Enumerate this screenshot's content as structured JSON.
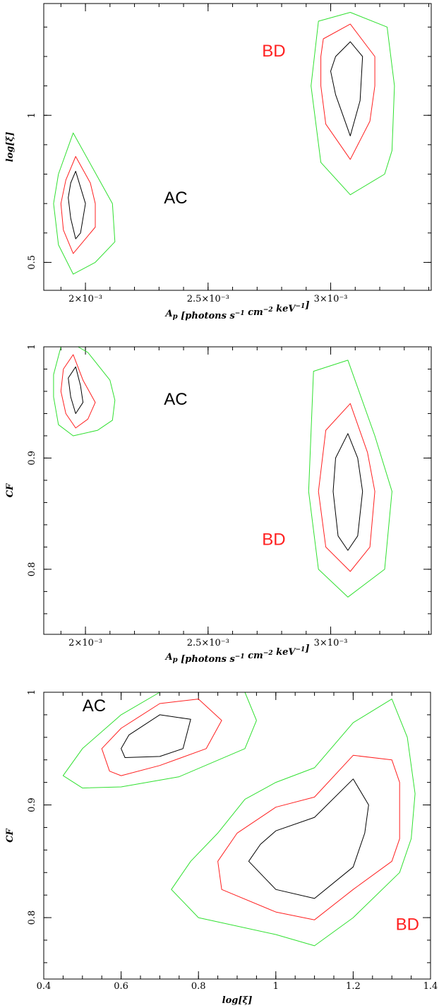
{
  "colors": {
    "inner": "#000000",
    "middle": "#ff2020",
    "outer": "#30e030",
    "label_AC": "#000000",
    "label_BD": "#ff2020"
  },
  "chart_data": [
    {
      "type": "contour",
      "title": "",
      "xlabel": "A_p [photons s^-1 cm^-2 keV^-1]",
      "ylabel": "log[ξ]",
      "xlim": [
        0.00183,
        0.00341
      ],
      "ylim": [
        0.405,
        1.38
      ],
      "x_ticks": [
        {
          "value": 0.002,
          "label": "2×10⁻³"
        },
        {
          "value": 0.0025,
          "label": "2.5×10⁻³"
        },
        {
          "value": 0.003,
          "label": "3×10⁻³"
        }
      ],
      "y_ticks": [
        {
          "value": 0.5,
          "label": "0.5"
        },
        {
          "value": 1,
          "label": "1"
        }
      ],
      "x_minor": 0.0001,
      "y_minor": 0.1,
      "annotations": [
        {
          "text": "AC",
          "x": 0.00232,
          "y": 0.7,
          "color_key": "label_AC"
        },
        {
          "text": "BD",
          "x": 0.00272,
          "y": 1.2,
          "color_key": "label_BD"
        }
      ],
      "contours": [
        {
          "region": "AC",
          "level": "outer",
          "points": [
            [
              0.00195,
              0.94
            ],
            [
              0.00211,
              0.7
            ],
            [
              0.00212,
              0.57
            ],
            [
              0.00204,
              0.5
            ],
            [
              0.00195,
              0.46
            ],
            [
              0.00189,
              0.56
            ],
            [
              0.00187,
              0.7
            ],
            [
              0.00189,
              0.8
            ]
          ]
        },
        {
          "region": "AC",
          "level": "middle",
          "points": [
            [
              0.00196,
              0.86
            ],
            [
              0.00202,
              0.77
            ],
            [
              0.00204,
              0.7
            ],
            [
              0.00204,
              0.62
            ],
            [
              0.00199,
              0.57
            ],
            [
              0.00195,
              0.53
            ],
            [
              0.00191,
              0.61
            ],
            [
              0.0019,
              0.7
            ],
            [
              0.00192,
              0.78
            ]
          ]
        },
        {
          "region": "AC",
          "level": "inner",
          "points": [
            [
              0.00196,
              0.81
            ],
            [
              0.002,
              0.7
            ],
            [
              0.00198,
              0.6
            ],
            [
              0.00196,
              0.58
            ],
            [
              0.00194,
              0.65
            ],
            [
              0.00193,
              0.72
            ],
            [
              0.00194,
              0.77
            ]
          ]
        },
        {
          "region": "BD",
          "level": "outer",
          "points": [
            [
              0.00295,
              1.32
            ],
            [
              0.00308,
              1.35
            ],
            [
              0.00323,
              1.3
            ],
            [
              0.00326,
              1.1
            ],
            [
              0.00325,
              0.88
            ],
            [
              0.00322,
              0.8
            ],
            [
              0.00308,
              0.73
            ],
            [
              0.00296,
              0.84
            ],
            [
              0.00292,
              1.1
            ]
          ]
        },
        {
          "region": "BD",
          "level": "middle",
          "points": [
            [
              0.00297,
              1.26
            ],
            [
              0.00308,
              1.31
            ],
            [
              0.00318,
              1.2
            ],
            [
              0.00318,
              1.1
            ],
            [
              0.00316,
              0.98
            ],
            [
              0.00308,
              0.85
            ],
            [
              0.00298,
              0.97
            ],
            [
              0.00296,
              1.1
            ],
            [
              0.00296,
              1.2
            ]
          ]
        },
        {
          "region": "BD",
          "level": "inner",
          "points": [
            [
              0.00302,
              1.2
            ],
            [
              0.00308,
              1.25
            ],
            [
              0.00313,
              1.2
            ],
            [
              0.00312,
              1.05
            ],
            [
              0.00308,
              0.93
            ],
            [
              0.00302,
              1.07
            ],
            [
              0.003,
              1.15
            ]
          ]
        }
      ]
    },
    {
      "type": "contour",
      "title": "",
      "xlabel": "A_p [photons s^-1 cm^-2 keV^-1]",
      "ylabel": "CF",
      "xlim": [
        0.00183,
        0.00341
      ],
      "ylim": [
        0.7415,
        1.0
      ],
      "x_ticks": [
        {
          "value": 0.002,
          "label": "2×10⁻³"
        },
        {
          "value": 0.0025,
          "label": "2.5×10⁻³"
        },
        {
          "value": 0.003,
          "label": "3×10⁻³"
        }
      ],
      "y_ticks": [
        {
          "value": 0.8,
          "label": "0.8"
        },
        {
          "value": 0.9,
          "label": "0.9"
        },
        {
          "value": 1,
          "label": "1"
        }
      ],
      "x_minor": 0.0001,
      "y_minor": 0.02,
      "annotations": [
        {
          "text": "AC",
          "x": 0.00232,
          "y": 0.948,
          "color_key": "label_AC"
        },
        {
          "text": "BD",
          "x": 0.00272,
          "y": 0.822,
          "color_key": "label_BD"
        }
      ],
      "contours": [
        {
          "region": "AC",
          "level": "outer",
          "points": [
            [
              0.0019,
              1.0
            ],
            [
              0.00197,
              1.0
            ],
            [
              0.00201,
              0.995
            ],
            [
              0.0021,
              0.97
            ],
            [
              0.00212,
              0.952
            ],
            [
              0.00211,
              0.934
            ],
            [
              0.00205,
              0.925
            ],
            [
              0.00195,
              0.92
            ],
            [
              0.00189,
              0.93
            ],
            [
              0.00187,
              0.955
            ],
            [
              0.00187,
              0.975
            ]
          ]
        },
        {
          "region": "AC",
          "level": "middle",
          "points": [
            [
              0.00195,
              0.993
            ],
            [
              0.00199,
              0.97
            ],
            [
              0.00204,
              0.95
            ],
            [
              0.00201,
              0.935
            ],
            [
              0.00196,
              0.927
            ],
            [
              0.00192,
              0.94
            ],
            [
              0.0019,
              0.96
            ],
            [
              0.00191,
              0.98
            ]
          ]
        },
        {
          "region": "AC",
          "level": "inner",
          "points": [
            [
              0.00196,
              0.982
            ],
            [
              0.00198,
              0.965
            ],
            [
              0.00199,
              0.95
            ],
            [
              0.00196,
              0.94
            ],
            [
              0.00194,
              0.955
            ],
            [
              0.00193,
              0.972
            ]
          ]
        },
        {
          "region": "BD",
          "level": "outer",
          "points": [
            [
              0.00293,
              0.978
            ],
            [
              0.00307,
              0.988
            ],
            [
              0.00318,
              0.92
            ],
            [
              0.00325,
              0.87
            ],
            [
              0.00322,
              0.8
            ],
            [
              0.00307,
              0.775
            ],
            [
              0.00295,
              0.8
            ],
            [
              0.00291,
              0.87
            ]
          ]
        },
        {
          "region": "BD",
          "level": "middle",
          "points": [
            [
              0.00298,
              0.925
            ],
            [
              0.00308,
              0.949
            ],
            [
              0.00315,
              0.905
            ],
            [
              0.00318,
              0.87
            ],
            [
              0.00316,
              0.82
            ],
            [
              0.00308,
              0.798
            ],
            [
              0.00298,
              0.82
            ],
            [
              0.00295,
              0.87
            ]
          ]
        },
        {
          "region": "BD",
          "level": "inner",
          "points": [
            [
              0.00302,
              0.9
            ],
            [
              0.00307,
              0.922
            ],
            [
              0.00311,
              0.9
            ],
            [
              0.00313,
              0.87
            ],
            [
              0.00311,
              0.83
            ],
            [
              0.00307,
              0.817
            ],
            [
              0.00303,
              0.83
            ],
            [
              0.00301,
              0.87
            ]
          ]
        }
      ]
    },
    {
      "type": "contour",
      "title": "",
      "xlabel": "log[ξ]",
      "ylabel": "CF",
      "xlim": [
        0.4,
        1.4
      ],
      "ylim": [
        0.7455,
        1.0
      ],
      "x_ticks": [
        {
          "value": 0.4,
          "label": "0.4"
        },
        {
          "value": 0.6,
          "label": "0.6"
        },
        {
          "value": 0.8,
          "label": "0.8"
        },
        {
          "value": 1.0,
          "label": "1"
        },
        {
          "value": 1.2,
          "label": "1.2"
        },
        {
          "value": 1.4,
          "label": "1.4"
        }
      ],
      "y_ticks": [
        {
          "value": 0.8,
          "label": "0.8"
        },
        {
          "value": 0.9,
          "label": "0.9"
        },
        {
          "value": 1,
          "label": "1"
        }
      ],
      "x_minor": 0.05,
      "y_minor": 0.02,
      "annotations": [
        {
          "text": "AC",
          "x": 0.5,
          "y": 0.983,
          "color_key": "label_AC"
        },
        {
          "text": "BD",
          "x": 1.31,
          "y": 0.789,
          "color_key": "label_BD"
        }
      ],
      "contours": [
        {
          "region": "AC",
          "level": "outer",
          "points": [
            [
              0.6,
              0.98
            ],
            [
              0.7,
              1.0
            ],
            [
              0.92,
              1.0
            ],
            [
              0.95,
              0.975
            ],
            [
              0.92,
              0.95
            ],
            [
              0.75,
              0.925
            ],
            [
              0.6,
              0.916
            ],
            [
              0.5,
              0.915
            ],
            [
              0.45,
              0.926
            ],
            [
              0.5,
              0.95
            ]
          ]
        },
        {
          "region": "AC",
          "level": "middle",
          "points": [
            [
              0.6,
              0.968
            ],
            [
              0.7,
              0.99
            ],
            [
              0.8,
              0.994
            ],
            [
              0.86,
              0.975
            ],
            [
              0.82,
              0.95
            ],
            [
              0.7,
              0.935
            ],
            [
              0.6,
              0.926
            ],
            [
              0.57,
              0.93
            ],
            [
              0.55,
              0.95
            ]
          ]
        },
        {
          "region": "AC",
          "level": "inner",
          "points": [
            [
              0.62,
              0.962
            ],
            [
              0.7,
              0.98
            ],
            [
              0.78,
              0.976
            ],
            [
              0.76,
              0.95
            ],
            [
              0.7,
              0.943
            ],
            [
              0.61,
              0.942
            ],
            [
              0.6,
              0.95
            ]
          ]
        },
        {
          "region": "BD",
          "level": "outer",
          "points": [
            [
              0.92,
              0.905
            ],
            [
              1.0,
              0.92
            ],
            [
              1.1,
              0.933
            ],
            [
              1.2,
              0.973
            ],
            [
              1.3,
              0.994
            ],
            [
              1.34,
              0.96
            ],
            [
              1.36,
              0.91
            ],
            [
              1.35,
              0.87
            ],
            [
              1.32,
              0.84
            ],
            [
              1.2,
              0.8
            ],
            [
              1.1,
              0.775
            ],
            [
              1.0,
              0.785
            ],
            [
              0.8,
              0.8
            ],
            [
              0.73,
              0.825
            ],
            [
              0.78,
              0.85
            ],
            [
              0.85,
              0.875
            ]
          ]
        },
        {
          "region": "BD",
          "level": "middle",
          "points": [
            [
              0.9,
              0.875
            ],
            [
              1.0,
              0.898
            ],
            [
              1.1,
              0.907
            ],
            [
              1.2,
              0.944
            ],
            [
              1.3,
              0.94
            ],
            [
              1.32,
              0.92
            ],
            [
              1.32,
              0.87
            ],
            [
              1.3,
              0.85
            ],
            [
              1.2,
              0.825
            ],
            [
              1.1,
              0.798
            ],
            [
              1.0,
              0.805
            ],
            [
              0.86,
              0.825
            ],
            [
              0.85,
              0.85
            ]
          ]
        },
        {
          "region": "BD",
          "level": "inner",
          "points": [
            [
              1.0,
              0.877
            ],
            [
              1.1,
              0.889
            ],
            [
              1.2,
              0.923
            ],
            [
              1.24,
              0.9
            ],
            [
              1.23,
              0.875
            ],
            [
              1.2,
              0.845
            ],
            [
              1.1,
              0.817
            ],
            [
              1.0,
              0.825
            ],
            [
              0.93,
              0.85
            ],
            [
              0.96,
              0.865
            ]
          ]
        }
      ]
    }
  ]
}
